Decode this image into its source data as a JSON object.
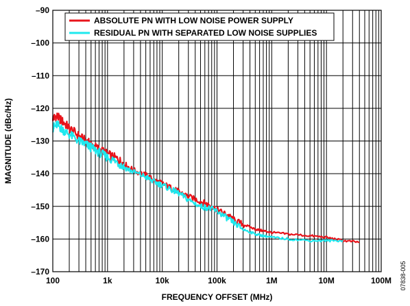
{
  "chart_data": {
    "type": "line",
    "title": "",
    "xlabel": "FREQUENCY OFFSET (MHz)",
    "ylabel": "MAGNITUDE (dBc/Hz)",
    "x_scale": "log",
    "xlim": [
      100,
      100000000
    ],
    "ylim": [
      -170,
      -90
    ],
    "grid": true,
    "legend_position": "top-left",
    "x_ticks": [
      {
        "value": 100,
        "label": "100"
      },
      {
        "value": 1000,
        "label": "1k"
      },
      {
        "value": 10000,
        "label": "10k"
      },
      {
        "value": 100000,
        "label": "100k"
      },
      {
        "value": 1000000,
        "label": "1M"
      },
      {
        "value": 10000000,
        "label": "10M"
      },
      {
        "value": 100000000,
        "label": "100M"
      }
    ],
    "y_ticks": [
      {
        "value": -90,
        "label": "–90"
      },
      {
        "value": -100,
        "label": "–100"
      },
      {
        "value": -110,
        "label": "–110"
      },
      {
        "value": -120,
        "label": "–120"
      },
      {
        "value": -130,
        "label": "–130"
      },
      {
        "value": -140,
        "label": "–140"
      },
      {
        "value": -150,
        "label": "–150"
      },
      {
        "value": -160,
        "label": "–160"
      },
      {
        "value": -170,
        "label": "–170"
      }
    ],
    "series": [
      {
        "name": "ABSOLUTE PN WITH LOW NOISE POWER SUPPLY",
        "color": "#e8141b",
        "x": [
          100,
          120,
          150,
          200,
          300,
          400,
          500,
          700,
          1000,
          1500,
          2000,
          3000,
          5000,
          7000,
          10000,
          15000,
          20000,
          30000,
          50000,
          70000,
          100000,
          150000,
          200000,
          300000,
          500000,
          700000,
          1000000,
          2000000,
          5000000,
          10000000,
          20000000,
          40000000
        ],
        "y": [
          -123,
          -122.5,
          -124,
          -126,
          -128.5,
          -130,
          -131,
          -132.5,
          -134,
          -135.5,
          -137,
          -139,
          -140.5,
          -142,
          -143,
          -144.5,
          -145.5,
          -147,
          -148.5,
          -149.5,
          -151,
          -152.5,
          -154,
          -155.5,
          -157,
          -157.5,
          -158,
          -158.5,
          -159,
          -159.5,
          -160.5,
          -161
        ]
      },
      {
        "name": "RESIDUAL PN WITH SEPARATED LOW NOISE SUPPLIES",
        "color": "#1ee8ee",
        "x": [
          100,
          120,
          150,
          200,
          300,
          400,
          500,
          700,
          1000,
          1500,
          2000,
          3000,
          5000,
          7000,
          10000,
          15000,
          20000,
          30000,
          50000,
          70000,
          100000,
          150000,
          200000,
          300000,
          500000,
          700000,
          1000000,
          2000000,
          5000000,
          10000000,
          20000000
        ],
        "y": [
          -126,
          -125,
          -126.5,
          -128,
          -130,
          -131,
          -132,
          -133.5,
          -135,
          -136.5,
          -138,
          -139.5,
          -141,
          -142.5,
          -143.5,
          -145,
          -146,
          -148,
          -150,
          -150.5,
          -151.5,
          -153.5,
          -155,
          -157,
          -158.5,
          -159,
          -159.5,
          -160,
          -160.5,
          -160.5,
          -160.5
        ]
      }
    ]
  },
  "figure_id": "07838-005"
}
